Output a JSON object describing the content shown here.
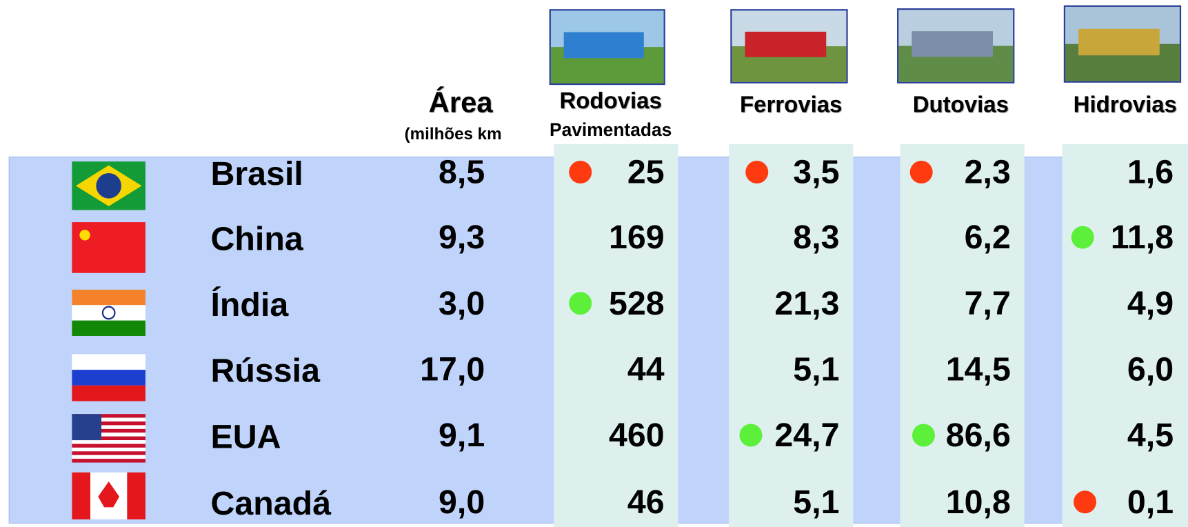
{
  "header": {
    "area_title": "Área",
    "area_unit": "(milhões km",
    "columns": [
      {
        "title": "Rodovias",
        "subtitle": "Pavimentadas"
      },
      {
        "title": "Ferrovias"
      },
      {
        "title": "Dutovias"
      },
      {
        "title": "Hidrovias"
      }
    ]
  },
  "table": {
    "rows": [
      {
        "country": "Brasil",
        "area": "8,5",
        "values": [
          "25",
          "3,5",
          "2,3",
          "1,6"
        ]
      },
      {
        "country": "China",
        "area": "9,3",
        "values": [
          "169",
          "8,3",
          "6,2",
          "11,8"
        ]
      },
      {
        "country": "Índia",
        "area": "3,0",
        "values": [
          "528",
          "21,3",
          "7,7",
          "4,9"
        ]
      },
      {
        "country": "Rússia",
        "area": "17,0",
        "values": [
          "44",
          "5,1",
          "14,5",
          "6,0"
        ]
      },
      {
        "country": "EUA",
        "area": "9,1",
        "values": [
          "460",
          "24,7",
          "86,6",
          "4,5"
        ]
      },
      {
        "country": "Canadá",
        "area": "9,0",
        "values": [
          "46",
          "5,1",
          "10,8",
          "0,1"
        ]
      }
    ]
  }
}
